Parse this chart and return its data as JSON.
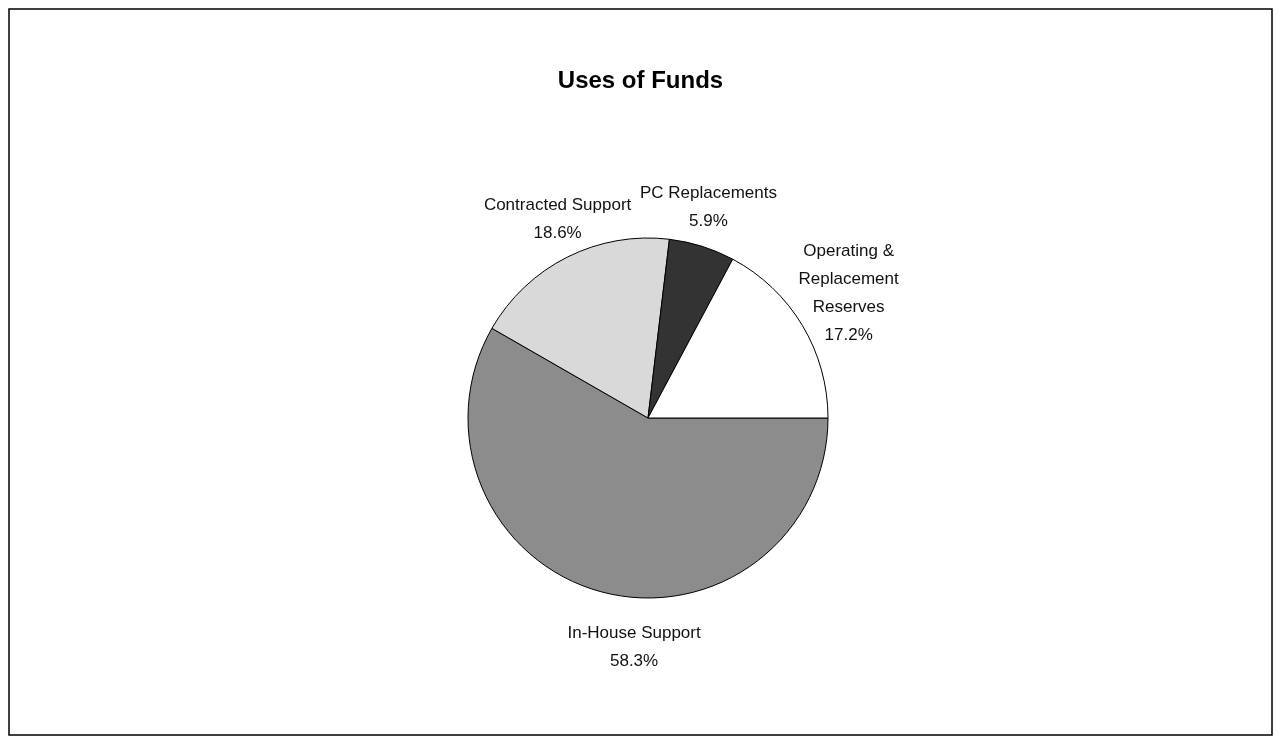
{
  "chart_data": {
    "type": "pie",
    "title": "Uses of Funds",
    "categories": [
      "In-House Support",
      "Contracted Support",
      "PC Replacements",
      "Operating & Replacement Reserves"
    ],
    "values": [
      58.3,
      18.6,
      5.9,
      17.2
    ],
    "value_labels": [
      "58.3%",
      "18.6%",
      "5.9%",
      "17.2%"
    ],
    "colors": [
      "#8c8c8c",
      "#d9d9d9",
      "#333333",
      "#ffffff"
    ]
  }
}
